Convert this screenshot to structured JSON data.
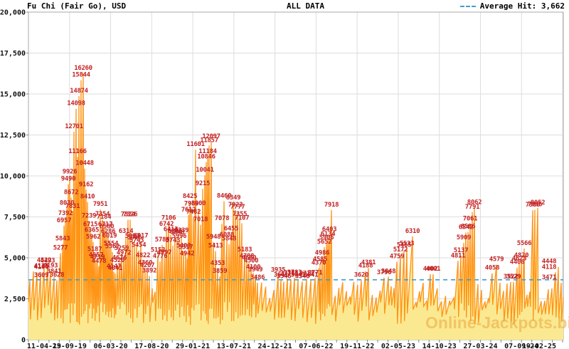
{
  "header": {
    "title": "Fu Chi (Fair Go), USD",
    "range_label": "ALL DATA",
    "legend_label": "Average Hit: 3,662"
  },
  "watermark": "Online-Jackpots.biz",
  "colors": {
    "area_fill": "#fbe992",
    "line": "#ff9416",
    "hit_label": "#c42222",
    "average_line": "#3f9fd0",
    "grid": "#dddddd",
    "border": "#aaaaaa",
    "tick": "#888888",
    "axis_text": "#111111"
  },
  "chart_data": {
    "type": "area",
    "title": "Fu Chi (Fair Go), USD",
    "subtitle": "ALL DATA",
    "unit": "USD",
    "average_hit": 3662,
    "legend_position": "top-right",
    "grid": true,
    "y_axis": {
      "min": 0,
      "max": 20000,
      "step": 2500,
      "tick_labels": [
        "20,000",
        "17,500",
        "15,000",
        "12,500",
        "10,000",
        "7,500",
        "5,000",
        "2,500",
        "0"
      ]
    },
    "x_axis": {
      "tick_labels": [
        "11-04-19",
        "23-09-19",
        "06-03-20",
        "17-08-20",
        "29-01-21",
        "13-07-21",
        "24-12-21",
        "07-06-22",
        "19-11-22",
        "02-05-23",
        "14-10-23",
        "27-03-24",
        "07-09-24",
        "19-02-25"
      ]
    },
    "hits_note": "labeled jackpot hits: [x_px_on_800w_canvas, value_usd, bold_flag]; dense unlabeled minor hits ~2300-3700 fill the gaps",
    "minor_hit_value_range": [
      2300,
      3700
    ],
    "hits": [
      [
        42,
        3609,
        0
      ],
      [
        47,
        4176,
        0
      ],
      [
        52,
        4104,
        0
      ],
      [
        57,
        4140,
        0
      ],
      [
        62,
        4522,
        1
      ],
      [
        67,
        4493,
        0
      ],
      [
        71,
        4193,
        0
      ],
      [
        76,
        3841,
        0
      ],
      [
        80,
        3628,
        0
      ],
      [
        85,
        5277,
        0
      ],
      [
        88,
        5843,
        0
      ],
      [
        90,
        6957,
        0
      ],
      [
        92,
        7392,
        0
      ],
      [
        94,
        8030,
        0
      ],
      [
        96,
        9490,
        0
      ],
      [
        98,
        9926,
        0
      ],
      [
        100,
        8672,
        0
      ],
      [
        102,
        7831,
        0
      ],
      [
        104,
        12701,
        0
      ],
      [
        107,
        14098,
        0
      ],
      [
        109,
        11166,
        0
      ],
      [
        111,
        14874,
        0
      ],
      [
        114,
        15844,
        0
      ],
      [
        117,
        16260,
        0
      ],
      [
        119,
        10448,
        0
      ],
      [
        121,
        9162,
        0
      ],
      [
        123,
        8410,
        0
      ],
      [
        125,
        7239,
        0
      ],
      [
        127,
        6715,
        0
      ],
      [
        129,
        6365,
        0
      ],
      [
        131,
        5962,
        0
      ],
      [
        133,
        5187,
        0
      ],
      [
        135,
        4857,
        0
      ],
      [
        137,
        4719,
        0
      ],
      [
        139,
        4478,
        0
      ],
      [
        141,
        7951,
        1
      ],
      [
        144,
        7354,
        0
      ],
      [
        146,
        7184,
        0
      ],
      [
        148,
        6717,
        0
      ],
      [
        150,
        6580,
        0
      ],
      [
        152,
        6286,
        1
      ],
      [
        154,
        6019,
        0
      ],
      [
        156,
        5554,
        0
      ],
      [
        158,
        5362,
        0
      ],
      [
        160,
        4147,
        0
      ],
      [
        162,
        4041,
        0
      ],
      [
        165,
        4520,
        0
      ],
      [
        168,
        4676,
        0
      ],
      [
        171,
        5259,
        0
      ],
      [
        174,
        4972,
        0
      ],
      [
        177,
        6314,
        0
      ],
      [
        180,
        7324,
        1
      ],
      [
        183,
        7326,
        0
      ],
      [
        186,
        5992,
        0
      ],
      [
        189,
        5916,
        0
      ],
      [
        192,
        5743,
        0
      ],
      [
        195,
        5454,
        0
      ],
      [
        198,
        6017,
        0
      ],
      [
        201,
        4822,
        0
      ],
      [
        204,
        4360,
        0
      ],
      [
        207,
        4207,
        0
      ],
      [
        210,
        3892,
        0
      ],
      [
        222,
        5153,
        0
      ],
      [
        225,
        4776,
        0
      ],
      [
        228,
        5786,
        0
      ],
      [
        231,
        4997,
        0
      ],
      [
        234,
        6742,
        1
      ],
      [
        237,
        7106,
        0
      ],
      [
        240,
        6413,
        0
      ],
      [
        243,
        5743,
        0
      ],
      [
        246,
        6306,
        0
      ],
      [
        249,
        6248,
        0
      ],
      [
        252,
        5996,
        0
      ],
      [
        255,
        6339,
        0
      ],
      [
        258,
        5403,
        0
      ],
      [
        261,
        5317,
        0
      ],
      [
        263,
        4942,
        0
      ],
      [
        265,
        7612,
        0
      ],
      [
        267,
        8425,
        0
      ],
      [
        269,
        7989,
        0
      ],
      [
        272,
        7482,
        0
      ],
      [
        275,
        11601,
        0
      ],
      [
        279,
        8000,
        0
      ],
      [
        282,
        7018,
        0
      ],
      [
        285,
        9215,
        0
      ],
      [
        288,
        10041,
        0
      ],
      [
        290,
        10846,
        0
      ],
      [
        292,
        11184,
        0
      ],
      [
        294,
        11857,
        0
      ],
      [
        297,
        12097,
        0
      ],
      [
        300,
        5948,
        0
      ],
      [
        303,
        5413,
        0
      ],
      [
        306,
        4353,
        0
      ],
      [
        309,
        3859,
        0
      ],
      [
        312,
        7078,
        0
      ],
      [
        315,
        8460,
        1
      ],
      [
        319,
        6088,
        0
      ],
      [
        322,
        5848,
        0
      ],
      [
        325,
        6455,
        0
      ],
      [
        328,
        8349,
        0
      ],
      [
        331,
        7923,
        0
      ],
      [
        334,
        7777,
        0
      ],
      [
        337,
        7355,
        0
      ],
      [
        340,
        7107,
        0
      ],
      [
        344,
        5183,
        0
      ],
      [
        347,
        4788,
        0
      ],
      [
        350,
        4680,
        0
      ],
      [
        353,
        4500,
        0
      ],
      [
        356,
        4100,
        0
      ],
      [
        359,
        3949,
        0
      ],
      [
        362,
        3486,
        0
      ],
      [
        391,
        3935,
        0
      ],
      [
        395,
        3641,
        0
      ],
      [
        399,
        3546,
        0
      ],
      [
        404,
        3738,
        0
      ],
      [
        409,
        3713,
        0
      ],
      [
        414,
        3783,
        0
      ],
      [
        419,
        3641,
        0
      ],
      [
        425,
        3546,
        0
      ],
      [
        431,
        3713,
        0
      ],
      [
        437,
        3641,
        0
      ],
      [
        443,
        3771,
        0
      ],
      [
        448,
        4370,
        0
      ],
      [
        450,
        4585,
        0
      ],
      [
        453,
        4986,
        1
      ],
      [
        456,
        5652,
        0
      ],
      [
        459,
        5906,
        0
      ],
      [
        461,
        6134,
        0
      ],
      [
        463,
        6403,
        0
      ],
      [
        466,
        7918,
        0
      ],
      [
        508,
        3620,
        0
      ],
      [
        514,
        4188,
        0
      ],
      [
        518,
        4381,
        0
      ],
      [
        540,
        3790,
        0
      ],
      [
        546,
        3848,
        0
      ],
      [
        558,
        4759,
        0
      ],
      [
        563,
        5172,
        0
      ],
      [
        568,
        5465,
        0
      ],
      [
        572,
        5533,
        0
      ],
      [
        580,
        6310,
        0
      ],
      [
        605,
        4002,
        0
      ],
      [
        609,
        4001,
        0
      ],
      [
        644,
        4811,
        0
      ],
      [
        648,
        5137,
        0
      ],
      [
        652,
        5909,
        0
      ],
      [
        655,
        6542,
        0
      ],
      [
        658,
        6586,
        0
      ],
      [
        661,
        7061,
        0
      ],
      [
        664,
        7791,
        0
      ],
      [
        667,
        8062,
        0
      ],
      [
        692,
        4058,
        0
      ],
      [
        698,
        4579,
        0
      ],
      [
        718,
        3522,
        0
      ],
      [
        722,
        3529,
        0
      ],
      [
        727,
        4406,
        0
      ],
      [
        730,
        4623,
        0
      ],
      [
        733,
        4820,
        0
      ],
      [
        737,
        5566,
        0
      ],
      [
        749,
        7906,
        0
      ],
      [
        752,
        7936,
        0
      ],
      [
        756,
        8052,
        1
      ],
      [
        781,
        4118,
        0
      ],
      [
        785,
        4448,
        1
      ],
      [
        789,
        3471,
        0
      ]
    ]
  }
}
